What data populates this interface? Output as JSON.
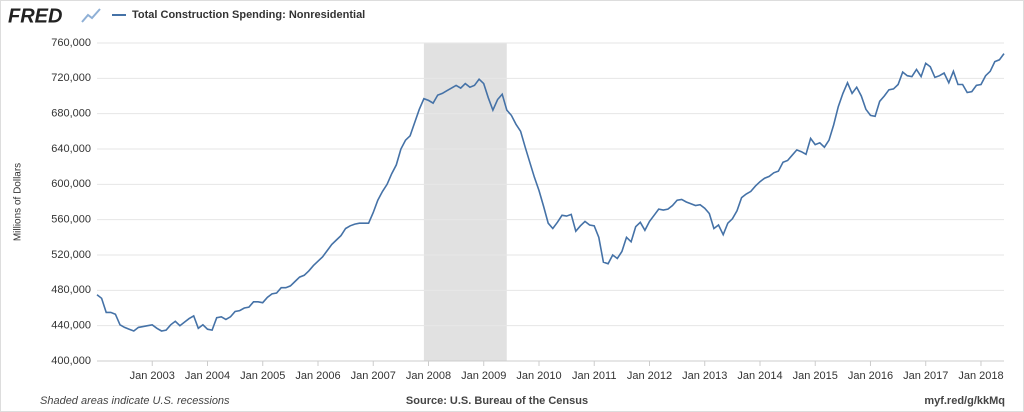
{
  "logo": "FRED",
  "footer": {
    "note": "Shaded areas indicate U.S. recessions",
    "source": "Source: U.S. Bureau of the Census",
    "link": "myf.red/g/kkMq"
  },
  "chart_data": {
    "type": "line",
    "y_label": "Millions of Dollars",
    "grid": true,
    "recessions": [
      {
        "start": "2007-12",
        "end": "2009-06"
      }
    ],
    "x": [
      "2002-01",
      "2002-02",
      "2002-03",
      "2002-04",
      "2002-05",
      "2002-06",
      "2002-07",
      "2002-08",
      "2002-09",
      "2002-10",
      "2002-11",
      "2002-12",
      "2003-01",
      "2003-02",
      "2003-03",
      "2003-04",
      "2003-05",
      "2003-06",
      "2003-07",
      "2003-08",
      "2003-09",
      "2003-10",
      "2003-11",
      "2003-12",
      "2004-01",
      "2004-02",
      "2004-03",
      "2004-04",
      "2004-05",
      "2004-06",
      "2004-07",
      "2004-08",
      "2004-09",
      "2004-10",
      "2004-11",
      "2004-12",
      "2005-01",
      "2005-02",
      "2005-03",
      "2005-04",
      "2005-05",
      "2005-06",
      "2005-07",
      "2005-08",
      "2005-09",
      "2005-10",
      "2005-11",
      "2005-12",
      "2006-01",
      "2006-02",
      "2006-03",
      "2006-04",
      "2006-05",
      "2006-06",
      "2006-07",
      "2006-08",
      "2006-09",
      "2006-10",
      "2006-11",
      "2006-12",
      "2007-01",
      "2007-02",
      "2007-03",
      "2007-04",
      "2007-05",
      "2007-06",
      "2007-07",
      "2007-08",
      "2007-09",
      "2007-10",
      "2007-11",
      "2007-12",
      "2008-01",
      "2008-02",
      "2008-03",
      "2008-04",
      "2008-05",
      "2008-06",
      "2008-07",
      "2008-08",
      "2008-09",
      "2008-10",
      "2008-11",
      "2008-12",
      "2009-01",
      "2009-02",
      "2009-03",
      "2009-04",
      "2009-05",
      "2009-06",
      "2009-07",
      "2009-08",
      "2009-09",
      "2009-10",
      "2009-11",
      "2009-12",
      "2010-01",
      "2010-02",
      "2010-03",
      "2010-04",
      "2010-05",
      "2010-06",
      "2010-07",
      "2010-08",
      "2010-09",
      "2010-10",
      "2010-11",
      "2010-12",
      "2011-01",
      "2011-02",
      "2011-03",
      "2011-04",
      "2011-05",
      "2011-06",
      "2011-07",
      "2011-08",
      "2011-09",
      "2011-10",
      "2011-11",
      "2011-12",
      "2012-01",
      "2012-02",
      "2012-03",
      "2012-04",
      "2012-05",
      "2012-06",
      "2012-07",
      "2012-08",
      "2012-09",
      "2012-10",
      "2012-11",
      "2012-12",
      "2013-01",
      "2013-02",
      "2013-03",
      "2013-04",
      "2013-05",
      "2013-06",
      "2013-07",
      "2013-08",
      "2013-09",
      "2013-10",
      "2013-11",
      "2013-12",
      "2014-01",
      "2014-02",
      "2014-03",
      "2014-04",
      "2014-05",
      "2014-06",
      "2014-07",
      "2014-08",
      "2014-09",
      "2014-10",
      "2014-11",
      "2014-12",
      "2015-01",
      "2015-02",
      "2015-03",
      "2015-04",
      "2015-05",
      "2015-06",
      "2015-07",
      "2015-08",
      "2015-09",
      "2015-10",
      "2015-11",
      "2015-12",
      "2016-01",
      "2016-02",
      "2016-03",
      "2016-04",
      "2016-05",
      "2016-06",
      "2016-07",
      "2016-08",
      "2016-09",
      "2016-10",
      "2016-11",
      "2016-12",
      "2017-01",
      "2017-02",
      "2017-03",
      "2017-04",
      "2017-05",
      "2017-06",
      "2017-07",
      "2017-08",
      "2017-09",
      "2017-10",
      "2017-11",
      "2017-12",
      "2018-01",
      "2018-02",
      "2018-03",
      "2018-04",
      "2018-05",
      "2018-06"
    ],
    "series": [
      {
        "name": "Total Construction Spending: Nonresidential",
        "color": "#4572a7",
        "values": [
          475000,
          471000,
          455000,
          455000,
          453000,
          441000,
          438000,
          436000,
          434000,
          438000,
          439000,
          440000,
          441000,
          437000,
          434000,
          435000,
          441000,
          445000,
          440000,
          444000,
          448000,
          451000,
          437000,
          441000,
          436000,
          435000,
          449000,
          450000,
          447000,
          450000,
          456000,
          457000,
          460000,
          461000,
          467000,
          467000,
          466000,
          472000,
          476000,
          477000,
          483000,
          483000,
          485000,
          490000,
          495000,
          497000,
          502000,
          508000,
          513000,
          518000,
          525000,
          532000,
          537000,
          542000,
          550000,
          553000,
          555000,
          556000,
          556000,
          556000,
          568000,
          582000,
          592000,
          600000,
          612000,
          622000,
          640000,
          650000,
          655000,
          670000,
          685000,
          697000,
          695000,
          692000,
          701000,
          703000,
          706000,
          709000,
          712000,
          709000,
          714000,
          710000,
          712000,
          719000,
          714000,
          698000,
          684000,
          696000,
          702000,
          684000,
          678000,
          668000,
          660000,
          642000,
          625000,
          608000,
          593000,
          575000,
          556000,
          550000,
          557000,
          565000,
          564000,
          566000,
          547000,
          553000,
          558000,
          554000,
          553000,
          540000,
          512000,
          510000,
          520000,
          516000,
          524000,
          540000,
          535000,
          552000,
          557000,
          548000,
          558000,
          565000,
          572000,
          571000,
          572000,
          576000,
          582000,
          583000,
          580000,
          578000,
          576000,
          577000,
          573000,
          567000,
          550000,
          554000,
          543000,
          556000,
          561000,
          570000,
          585000,
          589000,
          592000,
          598000,
          603000,
          607000,
          609000,
          613000,
          615000,
          625000,
          627000,
          633000,
          639000,
          637000,
          634000,
          652000,
          645000,
          647000,
          642000,
          650000,
          667000,
          688000,
          703000,
          715000,
          703000,
          710000,
          700000,
          685000,
          678000,
          677000,
          694000,
          700000,
          707000,
          708000,
          713000,
          727000,
          723000,
          722000,
          730000,
          722000,
          737000,
          733000,
          721000,
          723000,
          726000,
          715000,
          728000,
          713000,
          713000,
          704000,
          705000,
          712000,
          713000,
          723000,
          728000,
          739000,
          741000,
          748000
        ]
      }
    ],
    "xlim": [
      "2002-01",
      "2018-06"
    ],
    "xticks": [
      {
        "value": "2003-01",
        "label": "Jan 2003"
      },
      {
        "value": "2004-01",
        "label": "Jan 2004"
      },
      {
        "value": "2005-01",
        "label": "Jan 2005"
      },
      {
        "value": "2006-01",
        "label": "Jan 2006"
      },
      {
        "value": "2007-01",
        "label": "Jan 2007"
      },
      {
        "value": "2008-01",
        "label": "Jan 2008"
      },
      {
        "value": "2009-01",
        "label": "Jan 2009"
      },
      {
        "value": "2010-01",
        "label": "Jan 2010"
      },
      {
        "value": "2011-01",
        "label": "Jan 2011"
      },
      {
        "value": "2012-01",
        "label": "Jan 2012"
      },
      {
        "value": "2013-01",
        "label": "Jan 2013"
      },
      {
        "value": "2014-01",
        "label": "Jan 2014"
      },
      {
        "value": "2015-01",
        "label": "Jan 2015"
      },
      {
        "value": "2016-01",
        "label": "Jan 2016"
      },
      {
        "value": "2017-01",
        "label": "Jan 2017"
      },
      {
        "value": "2018-01",
        "label": "Jan 2018"
      }
    ],
    "ylim": [
      400000,
      760000
    ],
    "yticks": [
      {
        "value": 400000,
        "label": "400,000"
      },
      {
        "value": 440000,
        "label": "440,000"
      },
      {
        "value": 480000,
        "label": "480,000"
      },
      {
        "value": 520000,
        "label": "520,000"
      },
      {
        "value": 560000,
        "label": "560,000"
      },
      {
        "value": 600000,
        "label": "600,000"
      },
      {
        "value": 640000,
        "label": "640,000"
      },
      {
        "value": 680000,
        "label": "680,000"
      },
      {
        "value": 720000,
        "label": "720,000"
      },
      {
        "value": 760000,
        "label": "760,000"
      }
    ]
  }
}
